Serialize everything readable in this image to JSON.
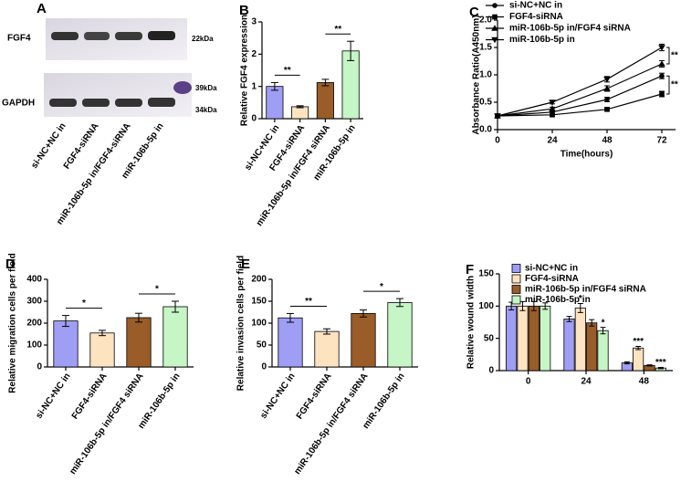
{
  "blot": {
    "panel": "A",
    "rows": [
      "FGF4",
      "GAPDH"
    ],
    "markers": [
      "22kDa",
      "39kDa",
      "34kDa"
    ],
    "lanes": [
      "si-NC+NC in",
      "FGF4-siRNA",
      "miR-106b-5p in/FGF4-siRNA",
      "miR-106b-5p in"
    ]
  },
  "chart_data": [
    {
      "type": "bar",
      "panel": "B",
      "y_label": "Relative FGF4 expression",
      "categories": [
        "si-NC+NC in",
        "FGF4-siRNA",
        "miR-106b-5p in/FGF4 siRNA",
        "miR-106b-5p in"
      ],
      "values": [
        1.0,
        0.37,
        1.12,
        2.1
      ],
      "errors": [
        0.12,
        0.03,
        0.1,
        0.3
      ],
      "colors": [
        "#9e9ef5",
        "#fde3c0",
        "#9a5c28",
        "#c6f5c6"
      ],
      "annotations": [
        "**",
        "**"
      ],
      "ylim": [
        0,
        3
      ],
      "yticks": [
        0,
        1,
        2,
        3
      ]
    },
    {
      "type": "line",
      "panel": "C",
      "x_label": "Time(hours)",
      "y_label": "Absorbance Ratio(A450nm)",
      "x": [
        0,
        24,
        48,
        72
      ],
      "xlim": [
        0,
        78
      ],
      "xticks": [
        0,
        24,
        48,
        72
      ],
      "ylim": [
        0,
        2
      ],
      "yticks": [
        {
          "value": 0,
          "label": "0.0"
        },
        {
          "value": 0.5,
          "label": "0.5"
        },
        {
          "value": 1,
          "label": "1.0"
        },
        {
          "value": 1.5,
          "label": "1.5"
        },
        {
          "value": 2,
          "label": "2.0"
        }
      ],
      "series": [
        {
          "name": "si-NC+NC in",
          "color": "#000000",
          "marker": "circle",
          "values": [
            0.25,
            0.32,
            0.55,
            0.98
          ],
          "errors": [
            0.02,
            0.03,
            0.04,
            0.05
          ]
        },
        {
          "name": "FGF4-siRNA",
          "color": "#000000",
          "marker": "square",
          "values": [
            0.25,
            0.27,
            0.37,
            0.65
          ],
          "errors": [
            0.02,
            0.02,
            0.03,
            0.05
          ]
        },
        {
          "name": "miR-106b-5p in/FGF4 siRNA",
          "color": "#000000",
          "marker": "triangle-up",
          "values": [
            0.25,
            0.38,
            0.75,
            1.2
          ],
          "errors": [
            0.02,
            0.03,
            0.05,
            0.06
          ]
        },
        {
          "name": "miR-106b-5p in",
          "color": "#000000",
          "marker": "triangle-down",
          "values": [
            0.25,
            0.5,
            0.92,
            1.5
          ],
          "errors": [
            0.02,
            0.03,
            0.05,
            0.06
          ]
        }
      ],
      "annotations": [
        "**",
        "**"
      ]
    },
    {
      "type": "bar",
      "panel": "D",
      "y_label": "Relative migration cells per field",
      "categories": [
        "si-NC+NC in",
        "FGF4-siRNA",
        "miR-106b-5p in/FGF4 siRNA",
        "miR-106b-5p in"
      ],
      "values": [
        210,
        155,
        225,
        275
      ],
      "errors": [
        25,
        12,
        20,
        25
      ],
      "colors": [
        "#9e9ef5",
        "#fde3c0",
        "#9a5c28",
        "#c6f5c6"
      ],
      "annotations": [
        "*",
        "*"
      ],
      "ylim": [
        0,
        400
      ],
      "yticks": [
        0,
        100,
        200,
        300,
        400
      ]
    },
    {
      "type": "bar",
      "panel": "E",
      "y_label": "Relative invasion cells per field",
      "categories": [
        "si-NC+NC in",
        "FGF4-siRNA",
        "miR-106b-5p in/FGF4 siRNA",
        "miR-106b-5p in"
      ],
      "values": [
        112,
        81,
        122,
        147
      ],
      "errors": [
        10,
        6,
        8,
        9
      ],
      "colors": [
        "#9e9ef5",
        "#fde3c0",
        "#9a5c28",
        "#c6f5c6"
      ],
      "annotations": [
        "**",
        "*"
      ],
      "ylim": [
        0,
        200
      ],
      "yticks": [
        0,
        50,
        100,
        150,
        200
      ]
    },
    {
      "type": "grouped",
      "panel": "F",
      "y_label": "Relative wound width",
      "categories": [
        "0",
        "24",
        "48"
      ],
      "ylim": [
        0,
        150
      ],
      "yticks": [
        0,
        50,
        100,
        150
      ],
      "series": [
        {
          "name": "si-NC+NC in",
          "color": "#9e9ef5",
          "values": [
            100,
            80,
            12
          ],
          "errors": [
            6,
            4,
            1.5
          ],
          "annotations": [
            null,
            null,
            null
          ]
        },
        {
          "name": "FGF4-siRNA",
          "color": "#fde3c0",
          "values": [
            100,
            97,
            35
          ],
          "errors": [
            7,
            7,
            2.5
          ],
          "annotations": [
            null,
            "*",
            "***"
          ]
        },
        {
          "name": "miR-106b-5p in/FGF4 siRNA",
          "color": "#9a5c28",
          "values": [
            100,
            74,
            8
          ],
          "errors": [
            7,
            5,
            1
          ],
          "annotations": [
            null,
            null,
            null
          ]
        },
        {
          "name": "miR-106b-5p in",
          "color": "#c6f5c6",
          "values": [
            100,
            62,
            4
          ],
          "errors": [
            5,
            5,
            1
          ],
          "annotations": [
            null,
            "*",
            "***"
          ]
        }
      ]
    }
  ]
}
